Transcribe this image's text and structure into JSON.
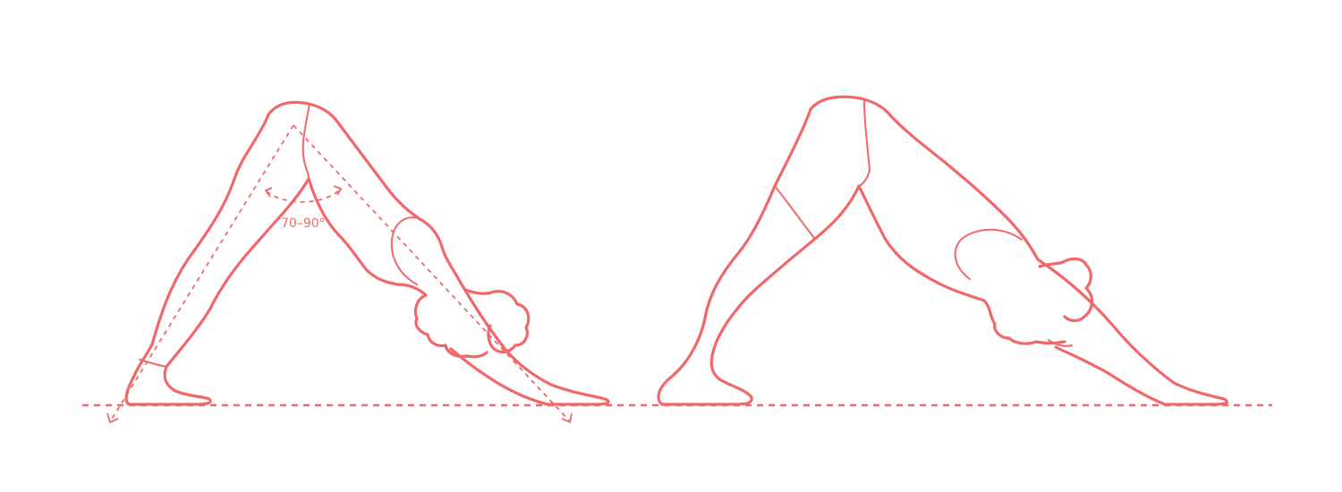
{
  "colors": {
    "line": "#f0686a",
    "background": "#ffffff"
  },
  "diagram": {
    "angle_label": "70–90°",
    "figures": [
      "downward-dog-guided",
      "downward-dog-bent-knees"
    ]
  }
}
